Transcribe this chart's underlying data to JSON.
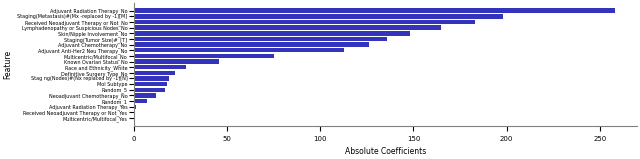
{
  "features": [
    "Adjuvant Radiation Therapy_No",
    "Staging(Metastasis)#(Mx -replaced by -1)[M]",
    "Received Neoadjuvant Therapy or Not_No",
    "Lymphadenopathy or Suspicious Nodes_No",
    "Skin/Nipple Involvement_No",
    "Staging(Tumor Size)#_[T]",
    "Adjuvant Chemotherapy_No",
    "Adjuvant Anti-Her2 Neu Therapy_No",
    "Multicentric/Multifocal_No",
    "Known Ovarian Status_No",
    "Race and Ethnicity_White",
    "Definitive Surgery Type_No",
    "Stag ng(Nodes)#(Nx replaced by -1)[N]",
    "Mol Subtype",
    "Random_5",
    "Neoadjuvant Chemotherapy_No",
    "Random_1",
    "Adjuvant Radiation Therapy_Yes",
    "Received Neoadjuvant Therapy or Not_Yes",
    "Multicentric/Multifocal_Yes"
  ],
  "values": [
    258,
    198,
    183,
    165,
    148,
    136,
    126,
    113,
    75,
    46,
    28,
    22,
    19,
    18,
    17,
    12,
    7,
    1,
    0.5,
    0.2
  ],
  "bar_color": "#3333bb",
  "xlabel": "Absolute Coefficients",
  "ylabel": "Feature",
  "figsize": [
    6.4,
    1.59
  ],
  "dpi": 100,
  "xlim": [
    0,
    270
  ]
}
